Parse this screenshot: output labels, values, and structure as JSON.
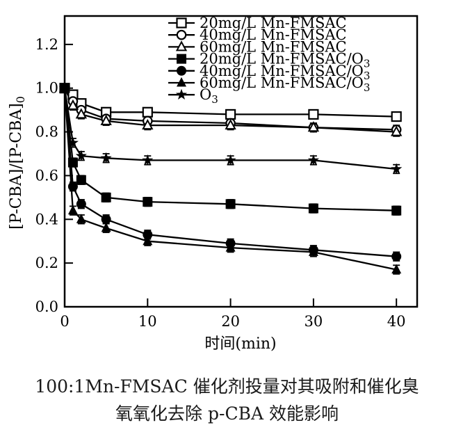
{
  "chart": {
    "background": "#ffffff",
    "ink_color": "#000000"
  },
  "chart_data": {
    "type": "line",
    "title": "",
    "xlabel": "时间(min)",
    "ylabel": "[P-CBA]/[P-CBA]₀",
    "xlim": [
      0,
      42.5
    ],
    "ylim": [
      0,
      1.33
    ],
    "x_ticks": [
      0,
      10,
      20,
      30,
      40
    ],
    "y_ticks": [
      "0.0",
      "0.2",
      "0.4",
      "0.6",
      "0.8",
      "1.0",
      "1.2"
    ],
    "grid": false,
    "legend_position": "top-center-inside",
    "error_bar": 0.02,
    "x": [
      0,
      1,
      2,
      5,
      10,
      20,
      30,
      40
    ],
    "series": [
      {
        "name": "20mg/L Mn-FMSAC",
        "marker": "square-open",
        "values": [
          1.0,
          0.97,
          0.93,
          0.89,
          0.89,
          0.88,
          0.88,
          0.87
        ]
      },
      {
        "name": "40mg/L Mn-FMSAC",
        "marker": "circle-open",
        "values": [
          1.0,
          0.94,
          0.9,
          0.86,
          0.85,
          0.84,
          0.82,
          0.81
        ]
      },
      {
        "name": "60mg/L Mn-FMSAC",
        "marker": "triangle-open",
        "values": [
          1.0,
          0.92,
          0.88,
          0.85,
          0.83,
          0.83,
          0.82,
          0.8
        ]
      },
      {
        "name": "20mg/L Mn-FMSAC/O₃",
        "marker": "square-filled",
        "values": [
          1.0,
          0.66,
          0.58,
          0.5,
          0.48,
          0.47,
          0.45,
          0.44
        ]
      },
      {
        "name": "40mg/L Mn-FMSAC/O₃",
        "marker": "circle-filled",
        "values": [
          1.0,
          0.55,
          0.47,
          0.4,
          0.33,
          0.29,
          0.26,
          0.23
        ]
      },
      {
        "name": "60mg/L Mn-FMSAC/O₃",
        "marker": "triangle-filled",
        "values": [
          1.0,
          0.44,
          0.4,
          0.36,
          0.3,
          0.27,
          0.25,
          0.17
        ]
      },
      {
        "name": "O₃",
        "marker": "star",
        "values": [
          1.0,
          0.75,
          0.69,
          0.68,
          0.67,
          0.67,
          0.67,
          0.63
        ]
      }
    ]
  },
  "caption": {
    "line1": "100:1Mn-FMSAC 催化剂投量对其吸附和催化臭",
    "line2": "氧氧化去除 p-CBA 效能影响"
  }
}
